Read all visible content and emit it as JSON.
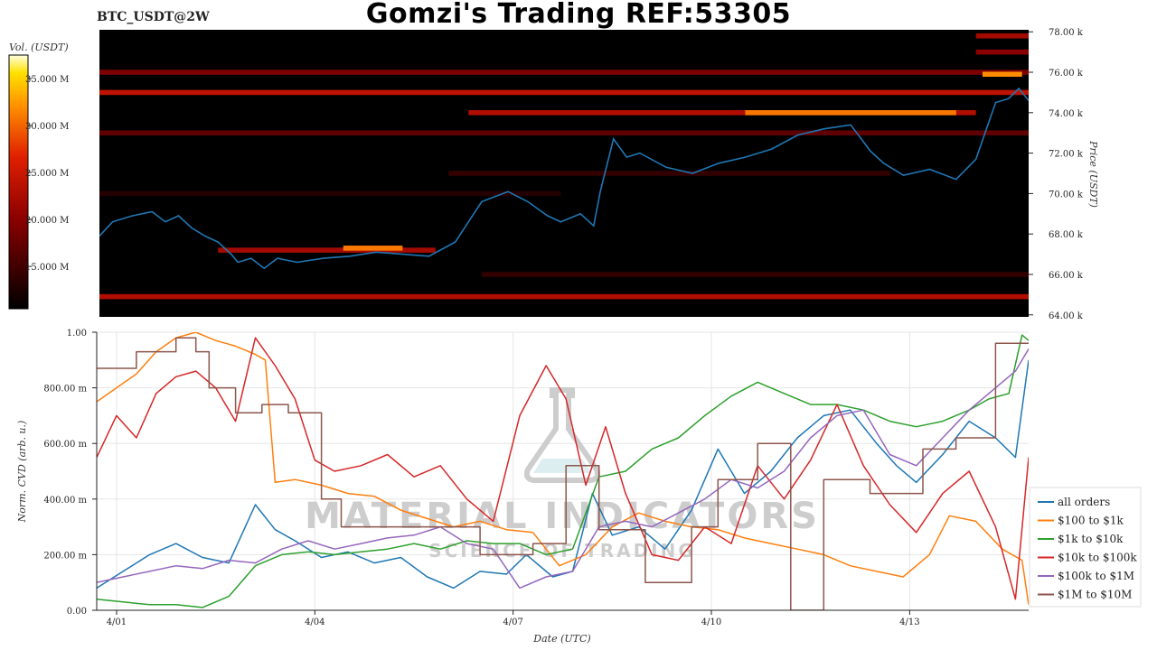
{
  "header": {
    "title": "Gomzi's Trading REF:53305",
    "pair": "BTC_USDT@2W"
  },
  "watermark": {
    "line1": "MATERIAL INDICATORS",
    "line2": "SCIENCE OF TRADING"
  },
  "colors": {
    "price_line": "#1f77b4",
    "heatmap_bg": "#000000"
  },
  "chart_data": [
    {
      "type": "heatmap",
      "subtype": "orderbook-liquidity-heatmap-with-price",
      "colorbar": {
        "label": "Vol. (USDT)",
        "ticks": [
          "35.000 M",
          "30.000 M",
          "25.000 M",
          "20.000 M",
          "15.000 M"
        ],
        "tick_values": [
          35,
          30,
          25,
          20,
          15
        ],
        "range": [
          10.5,
          37.5
        ],
        "colormap": "black-red-orange-yellow-white"
      },
      "y_axis": {
        "label": "Price (USDT)",
        "ticks": [
          "78.00 k",
          "76.00 k",
          "74.00 k",
          "72.00 k",
          "70.00 k",
          "68.00 k",
          "66.00 k",
          "64.00 k"
        ],
        "tick_values": [
          78,
          76,
          74,
          72,
          70,
          68,
          66,
          64
        ],
        "ylim": [
          63.9,
          78.1
        ],
        "unit": "k USDT"
      },
      "x_range_days": [
        0,
        14.1
      ],
      "price_series": {
        "x": [
          0,
          0.2,
          0.5,
          0.8,
          1.0,
          1.2,
          1.4,
          1.6,
          1.8,
          2.0,
          2.1,
          2.3,
          2.5,
          2.7,
          3.0,
          3.4,
          3.8,
          4.2,
          4.6,
          5.0,
          5.4,
          5.8,
          6.2,
          6.5,
          6.8,
          7.0,
          7.3,
          7.5,
          7.6,
          7.8,
          8.0,
          8.2,
          8.6,
          9.0,
          9.4,
          9.8,
          10.2,
          10.6,
          11.0,
          11.4,
          11.7,
          11.9,
          12.2,
          12.6,
          13.0,
          13.3,
          13.6,
          13.8,
          13.95,
          14.1
        ],
        "y": [
          67.9,
          68.6,
          68.9,
          69.1,
          68.6,
          68.9,
          68.3,
          67.9,
          67.6,
          67.0,
          66.6,
          66.8,
          66.3,
          66.8,
          66.6,
          66.8,
          66.9,
          67.1,
          67.0,
          66.9,
          67.6,
          69.6,
          70.1,
          69.6,
          68.9,
          68.6,
          69.0,
          68.4,
          70.1,
          72.7,
          71.8,
          72.0,
          71.3,
          71.0,
          71.5,
          71.8,
          72.2,
          72.9,
          73.2,
          73.4,
          72.1,
          71.5,
          70.9,
          71.2,
          70.7,
          71.7,
          74.5,
          74.7,
          75.2,
          74.6
        ]
      },
      "liquidity_bands": [
        {
          "price": 77.8,
          "x0": 13.3,
          "x1": 14.1,
          "intensity": 22
        },
        {
          "price": 77.0,
          "x0": 13.3,
          "x1": 14.1,
          "intensity": 20
        },
        {
          "price": 76.0,
          "x0": 0,
          "x1": 14.1,
          "intensity": 19
        },
        {
          "price": 75.9,
          "x0": 13.4,
          "x1": 14.0,
          "intensity": 32
        },
        {
          "price": 75.0,
          "x0": 0,
          "x1": 14.1,
          "intensity": 24
        },
        {
          "price": 74.0,
          "x0": 5.6,
          "x1": 13.3,
          "intensity": 23
        },
        {
          "price": 74.0,
          "x0": 9.8,
          "x1": 13.0,
          "intensity": 31
        },
        {
          "price": 73.0,
          "x0": 0,
          "x1": 14.1,
          "intensity": 17
        },
        {
          "price": 71.0,
          "x0": 5.3,
          "x1": 12.0,
          "intensity": 14
        },
        {
          "price": 70.0,
          "x0": 0,
          "x1": 7.0,
          "intensity": 13
        },
        {
          "price": 67.2,
          "x0": 1.8,
          "x1": 5.1,
          "intensity": 22
        },
        {
          "price": 67.3,
          "x0": 3.7,
          "x1": 4.6,
          "intensity": 31
        },
        {
          "price": 66.0,
          "x0": 5.8,
          "x1": 14.1,
          "intensity": 14
        },
        {
          "price": 64.9,
          "x0": 0,
          "x1": 14.1,
          "intensity": 23
        }
      ]
    },
    {
      "type": "line",
      "xlabel": "Date (UTC)",
      "ylabel": "Norm. CVD (arb. u.)",
      "x_ticks": [
        "4/01",
        "4/04",
        "4/07",
        "4/10",
        "4/13"
      ],
      "x_tick_values": [
        0.3,
        3.3,
        6.3,
        9.3,
        12.3
      ],
      "x_range_days": [
        0,
        14.1
      ],
      "y_ticks": [
        "1.00",
        "800.00 m",
        "600.00 m",
        "400.00 m",
        "200.00 m",
        "0.00"
      ],
      "y_tick_values": [
        1.0,
        0.8,
        0.6,
        0.4,
        0.2,
        0.0
      ],
      "ylim": [
        0,
        1.0
      ],
      "grid": true,
      "legend_position": "bottom-right",
      "series": [
        {
          "name": "all orders",
          "color": "#1f77b4",
          "x": [
            0,
            0.4,
            0.8,
            1.2,
            1.6,
            2.0,
            2.4,
            2.7,
            3.0,
            3.4,
            3.8,
            4.2,
            4.6,
            5.0,
            5.4,
            5.8,
            6.2,
            6.5,
            6.9,
            7.2,
            7.5,
            7.8,
            8.2,
            8.6,
            9.0,
            9.4,
            9.8,
            10.2,
            10.6,
            11.0,
            11.4,
            11.8,
            12.1,
            12.4,
            12.8,
            13.2,
            13.6,
            13.9,
            14.1
          ],
          "y": [
            0.08,
            0.14,
            0.2,
            0.24,
            0.19,
            0.17,
            0.38,
            0.29,
            0.25,
            0.19,
            0.21,
            0.17,
            0.19,
            0.12,
            0.08,
            0.14,
            0.13,
            0.2,
            0.12,
            0.14,
            0.42,
            0.27,
            0.3,
            0.22,
            0.36,
            0.58,
            0.42,
            0.5,
            0.62,
            0.7,
            0.72,
            0.6,
            0.52,
            0.46,
            0.56,
            0.68,
            0.62,
            0.55,
            0.9
          ]
        },
        {
          "name": "$100 to $1k",
          "color": "#ff7f0e",
          "x": [
            0,
            0.3,
            0.6,
            0.9,
            1.2,
            1.5,
            1.8,
            2.1,
            2.4,
            2.55,
            2.7,
            3.0,
            3.4,
            3.8,
            4.2,
            4.6,
            5.0,
            5.4,
            5.8,
            6.2,
            6.6,
            7.0,
            7.4,
            7.8,
            8.2,
            8.6,
            9.0,
            9.4,
            9.8,
            10.2,
            10.6,
            11.0,
            11.4,
            11.8,
            12.2,
            12.6,
            12.9,
            13.3,
            13.7,
            14.0,
            14.1
          ],
          "y": [
            0.75,
            0.8,
            0.85,
            0.93,
            0.98,
            1.0,
            0.97,
            0.95,
            0.92,
            0.9,
            0.46,
            0.47,
            0.45,
            0.42,
            0.41,
            0.36,
            0.33,
            0.3,
            0.32,
            0.29,
            0.28,
            0.16,
            0.2,
            0.3,
            0.35,
            0.32,
            0.3,
            0.29,
            0.26,
            0.24,
            0.22,
            0.2,
            0.16,
            0.14,
            0.12,
            0.2,
            0.34,
            0.32,
            0.22,
            0.18,
            0.02
          ]
        },
        {
          "name": "$1k to $10k",
          "color": "#2ca02c",
          "x": [
            0,
            0.4,
            0.8,
            1.2,
            1.6,
            2.0,
            2.4,
            2.8,
            3.2,
            3.6,
            4.0,
            4.4,
            4.8,
            5.2,
            5.6,
            6.0,
            6.4,
            6.8,
            7.2,
            7.6,
            8.0,
            8.4,
            8.8,
            9.2,
            9.6,
            10.0,
            10.4,
            10.8,
            11.2,
            11.6,
            12.0,
            12.4,
            12.8,
            13.2,
            13.5,
            13.8,
            14.0,
            14.1
          ],
          "y": [
            0.04,
            0.03,
            0.02,
            0.02,
            0.01,
            0.05,
            0.16,
            0.2,
            0.21,
            0.2,
            0.21,
            0.22,
            0.24,
            0.22,
            0.25,
            0.24,
            0.24,
            0.2,
            0.22,
            0.48,
            0.5,
            0.58,
            0.62,
            0.7,
            0.77,
            0.82,
            0.78,
            0.74,
            0.74,
            0.72,
            0.68,
            0.66,
            0.68,
            0.72,
            0.76,
            0.78,
            0.99,
            0.97
          ]
        },
        {
          "name": "$10k to $100k",
          "color": "#d62728",
          "x": [
            0,
            0.3,
            0.6,
            0.9,
            1.2,
            1.5,
            1.8,
            2.1,
            2.4,
            2.7,
            3.0,
            3.3,
            3.6,
            4.0,
            4.4,
            4.8,
            5.2,
            5.6,
            6.0,
            6.4,
            6.8,
            7.1,
            7.4,
            7.7,
            8.0,
            8.4,
            8.8,
            9.2,
            9.6,
            10.0,
            10.4,
            10.8,
            11.2,
            11.6,
            12.0,
            12.4,
            12.8,
            13.2,
            13.6,
            13.9,
            14.1
          ],
          "y": [
            0.55,
            0.7,
            0.62,
            0.78,
            0.84,
            0.86,
            0.8,
            0.68,
            0.98,
            0.88,
            0.76,
            0.54,
            0.5,
            0.52,
            0.56,
            0.48,
            0.52,
            0.4,
            0.32,
            0.7,
            0.88,
            0.76,
            0.45,
            0.66,
            0.42,
            0.2,
            0.18,
            0.3,
            0.24,
            0.52,
            0.4,
            0.54,
            0.74,
            0.52,
            0.38,
            0.28,
            0.42,
            0.5,
            0.3,
            0.04,
            0.55
          ]
        },
        {
          "name": "$100k to $1M",
          "color": "#9467bd",
          "x": [
            0,
            0.4,
            0.8,
            1.2,
            1.6,
            2.0,
            2.4,
            2.8,
            3.2,
            3.6,
            4.0,
            4.4,
            4.8,
            5.2,
            5.6,
            6.0,
            6.4,
            6.8,
            7.2,
            7.6,
            8.0,
            8.4,
            8.8,
            9.2,
            9.6,
            10.0,
            10.4,
            10.8,
            11.2,
            11.6,
            12.0,
            12.4,
            12.8,
            13.2,
            13.6,
            13.9,
            14.1
          ],
          "y": [
            0.1,
            0.12,
            0.14,
            0.16,
            0.15,
            0.18,
            0.17,
            0.22,
            0.25,
            0.22,
            0.24,
            0.26,
            0.27,
            0.3,
            0.24,
            0.22,
            0.08,
            0.12,
            0.14,
            0.3,
            0.32,
            0.3,
            0.35,
            0.4,
            0.47,
            0.44,
            0.5,
            0.62,
            0.7,
            0.72,
            0.56,
            0.52,
            0.62,
            0.72,
            0.8,
            0.86,
            0.94
          ]
        },
        {
          "name": "$1M to $10M",
          "color": "#8c564b",
          "x": [
            0,
            0.6,
            0.6,
            1.2,
            1.2,
            1.5,
            1.5,
            1.7,
            1.7,
            2.1,
            2.1,
            2.5,
            2.5,
            2.9,
            2.9,
            3.4,
            3.4,
            3.7,
            3.7,
            5.8,
            5.8,
            6.6,
            6.6,
            7.1,
            7.1,
            7.6,
            7.6,
            8.3,
            8.3,
            9.0,
            9.0,
            9.4,
            9.4,
            10.0,
            10.0,
            10.5,
            10.5,
            11.0,
            11.0,
            11.7,
            11.7,
            12.5,
            12.5,
            13.0,
            13.0,
            13.6,
            13.6,
            14.1
          ],
          "y": [
            0.87,
            0.87,
            0.93,
            0.93,
            0.98,
            0.98,
            0.93,
            0.93,
            0.8,
            0.8,
            0.71,
            0.71,
            0.74,
            0.74,
            0.71,
            0.71,
            0.4,
            0.4,
            0.3,
            0.3,
            0.2,
            0.2,
            0.24,
            0.24,
            0.52,
            0.52,
            0.29,
            0.29,
            0.1,
            0.1,
            0.3,
            0.3,
            0.47,
            0.47,
            0.6,
            0.6,
            0.0,
            0.0,
            0.47,
            0.47,
            0.42,
            0.42,
            0.58,
            0.58,
            0.62,
            0.62,
            0.96,
            0.96
          ]
        }
      ]
    }
  ]
}
